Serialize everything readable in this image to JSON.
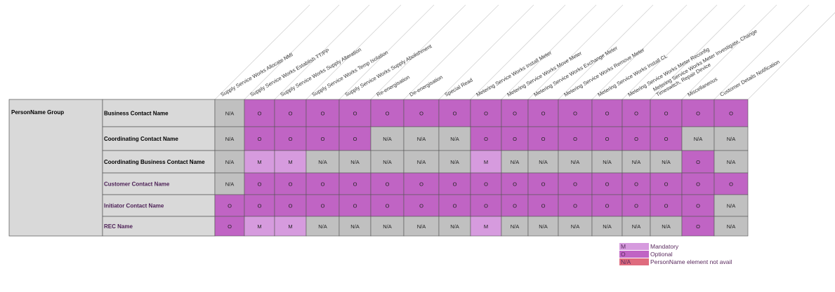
{
  "columns": [
    "Supply Service Works Allocate NMI",
    "Supply Service Works Establish TT/PP",
    "Supply Service Works Supply Alteration",
    "Supply Service Works Temp Isolation",
    "Supply Service Works Supply Abolishment",
    "Re-energisation",
    "De-energisation",
    "Special Read",
    "Metering Service Works Install Meter",
    "Metering Service Works Move Meter",
    "Metering Service Works Exchange Meter",
    "Metering Service Works Remove Meter",
    "Metering Service Works Install CL",
    "Metering Service Works Meter Reconfig",
    [
      "Metering Service Works Meter Investigate, Change",
      "Timeswitch, Repair Device"
    ],
    "Miscellaneous",
    "Customer Details Notification"
  ],
  "group_label": "PersonName Group",
  "rows": [
    {
      "label": "Business Contact Name",
      "style": "black",
      "cells": [
        "N/A",
        "O",
        "O",
        "O",
        "O",
        "O",
        "O",
        "O",
        "O",
        "O",
        "O",
        "O",
        "O",
        "O",
        "O",
        "O",
        "O"
      ]
    },
    {
      "label": "Coordinating Contact Name",
      "style": "black",
      "cells": [
        "N/A",
        "O",
        "O",
        "O",
        "O",
        "N/A",
        "N/A",
        "N/A",
        "O",
        "O",
        "O",
        "O",
        "O",
        "O",
        "O",
        "N/A",
        "N/A"
      ]
    },
    {
      "label": "Coordinating Business Contact Name",
      "style": "black",
      "cells": [
        "N/A",
        "M",
        "M",
        "N/A",
        "N/A",
        "N/A",
        "N/A",
        "N/A",
        "M",
        "N/A",
        "N/A",
        "N/A",
        "N/A",
        "N/A",
        "N/A",
        "O",
        "N/A"
      ]
    },
    {
      "label": "Customer Contact Name",
      "style": "purple",
      "cells": [
        "N/A",
        "O",
        "O",
        "O",
        "O",
        "O",
        "O",
        "O",
        "O",
        "O",
        "O",
        "O",
        "O",
        "O",
        "O",
        "O",
        "O"
      ]
    },
    {
      "label": "Initiator Contact Name",
      "style": "purple",
      "cells": [
        "O",
        "O",
        "O",
        "O",
        "O",
        "O",
        "O",
        "O",
        "O",
        "O",
        "O",
        "O",
        "O",
        "O",
        "O",
        "O",
        "N/A"
      ]
    },
    {
      "label": "REC Name",
      "style": "purple",
      "cells": [
        "O",
        "M",
        "M",
        "N/A",
        "N/A",
        "N/A",
        "N/A",
        "N/A",
        "M",
        "N/A",
        "N/A",
        "N/A",
        "N/A",
        "N/A",
        "N/A",
        "O",
        "N/A"
      ]
    }
  ],
  "colors": {
    "M": "#d69bde",
    "O": "#c064c4",
    "N/A": "#c0c0c0",
    "na_legend": "#df6b7e",
    "label_bg": "#d9d9d9",
    "label_purple_text": "#4b1f55",
    "header_text": "#333333"
  },
  "legend": [
    {
      "code": "M",
      "label": "Mandatory",
      "color": "#d69bde"
    },
    {
      "code": "O",
      "label": "Optional",
      "color": "#c064c4"
    },
    {
      "code": "N/A",
      "label": "PersonName element not avail",
      "color": "#df6b7e"
    }
  ]
}
